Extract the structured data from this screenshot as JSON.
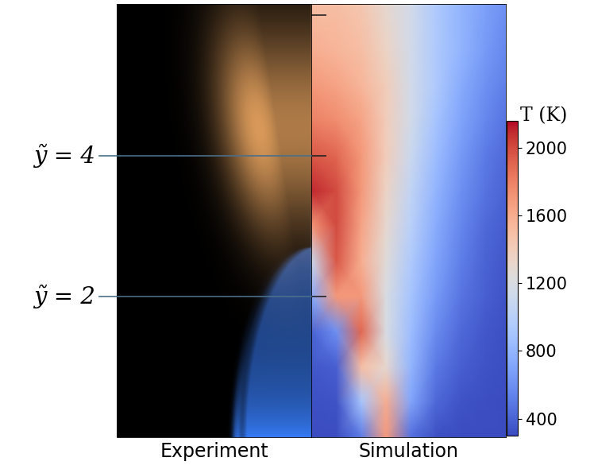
{
  "chart_data": {
    "type": "heatmap",
    "panel_labels": [
      "Experiment",
      "Simulation"
    ],
    "annotations": [
      {
        "text": "ỹ = 4",
        "y": 4
      },
      {
        "text": "ỹ = 2",
        "y": 2
      }
    ],
    "xlim": [
      -2.74,
      2.74
    ],
    "ylim": [
      0,
      6.15
    ],
    "yticks": [
      2,
      4,
      6
    ],
    "tick_labels": false,
    "x": [
      0,
      0.35,
      0.7,
      1.05,
      1.4,
      1.75,
      2.1,
      2.45,
      2.74
    ],
    "y": [
      0,
      0.5,
      1,
      1.5,
      2,
      2.5,
      3,
      3.5,
      4,
      4.5,
      5,
      5.5,
      6.15
    ],
    "temperature": [
      [
        300,
        300,
        500,
        1700,
        450,
        320,
        300,
        300,
        300
      ],
      [
        320,
        330,
        900,
        1600,
        700,
        420,
        330,
        310,
        300
      ],
      [
        350,
        380,
        1500,
        1300,
        800,
        500,
        380,
        330,
        310
      ],
      [
        400,
        600,
        1900,
        1200,
        850,
        580,
        430,
        350,
        320
      ],
      [
        750,
        1700,
        1700,
        1200,
        900,
        650,
        480,
        380,
        330
      ],
      [
        1100,
        1950,
        1600,
        1250,
        950,
        700,
        520,
        400,
        350
      ],
      [
        1700,
        2000,
        1650,
        1300,
        1000,
        750,
        560,
        430,
        370
      ],
      [
        2100,
        2000,
        1700,
        1350,
        1050,
        800,
        600,
        470,
        400
      ],
      [
        1950,
        1900,
        1700,
        1400,
        1100,
        850,
        650,
        500,
        430
      ],
      [
        1800,
        1750,
        1650,
        1400,
        1150,
        900,
        700,
        560,
        470
      ],
      [
        1700,
        1650,
        1550,
        1400,
        1150,
        950,
        750,
        600,
        520
      ],
      [
        1600,
        1550,
        1500,
        1350,
        1150,
        950,
        800,
        650,
        560
      ],
      [
        1500,
        1500,
        1450,
        1300,
        1150,
        950,
        800,
        680,
        600
      ]
    ],
    "colorbar": {
      "label": "T (K)",
      "range": [
        300,
        2160
      ],
      "ticks": [
        400,
        800,
        1200,
        1600,
        2000
      ]
    }
  }
}
